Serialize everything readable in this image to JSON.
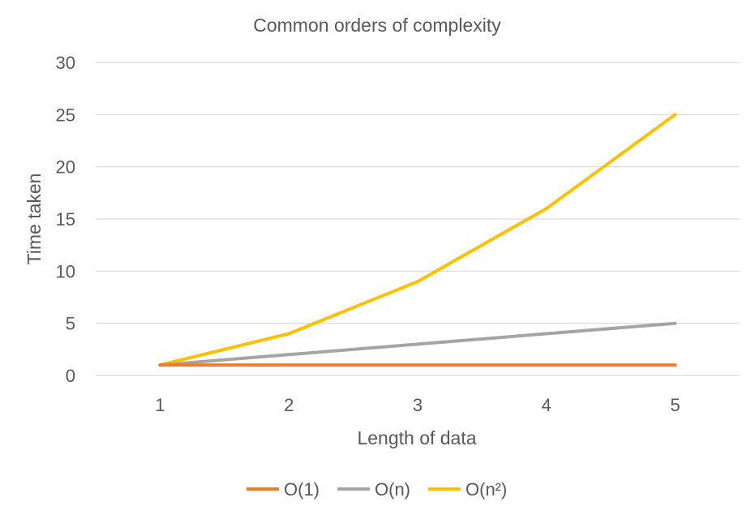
{
  "chart_data": {
    "type": "line",
    "title": "Common orders of complexity",
    "xlabel": "Length of data",
    "ylabel": "Time taken",
    "categories": [
      "1",
      "2",
      "3",
      "4",
      "5"
    ],
    "x": [
      1,
      2,
      3,
      4,
      5
    ],
    "ylim": [
      0,
      30
    ],
    "yticks": [
      "0",
      "5",
      "10",
      "15",
      "20",
      "25",
      "30"
    ],
    "grid": true,
    "legend_position": "bottom",
    "series": [
      {
        "name": "O(1)",
        "color": "#ED7D31",
        "values": [
          1,
          1,
          1,
          1,
          1
        ]
      },
      {
        "name": "O(n)",
        "color": "#A5A5A5",
        "values": [
          1,
          2,
          3,
          4,
          5
        ]
      },
      {
        "name": "O(n²)",
        "color": "#FFC000",
        "values": [
          1,
          4,
          9,
          16,
          25
        ]
      }
    ]
  }
}
